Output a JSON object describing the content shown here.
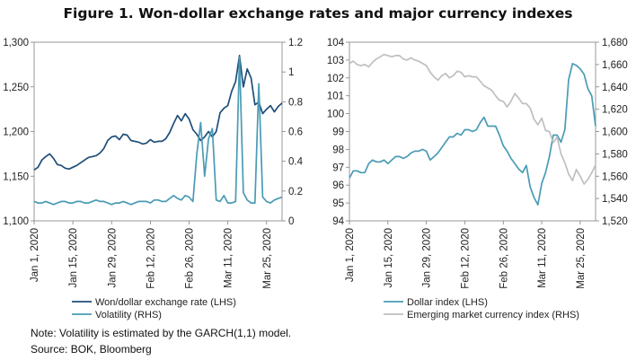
{
  "title": "Figure 1. Won-dollar exchange rates and major currency indexes",
  "note": "Note: Volatility is estimated by the GARCH(1,1) model.",
  "source": "Source: BOK, Bloomberg",
  "colors": {
    "dark_blue": "#1f4e79",
    "teal": "#4a9bb5",
    "light_gray": "#bfbfbf",
    "axis": "#808080"
  },
  "chart_data": [
    {
      "type": "line",
      "x": [
        "Jan 1, 2020",
        "Jan 2",
        "Jan 3",
        "Jan 6",
        "Jan 7",
        "Jan 8",
        "Jan 9",
        "Jan 10",
        "Jan 13",
        "Jan 14",
        "Jan 15",
        "Jan 16",
        "Jan 17",
        "Jan 20",
        "Jan 21",
        "Jan 22",
        "Jan 23",
        "Jan 24",
        "Jan 27",
        "Jan 28",
        "Jan 29",
        "Jan 30",
        "Jan 31",
        "Feb 3",
        "Feb 4",
        "Feb 5",
        "Feb 6",
        "Feb 7",
        "Feb 10",
        "Feb 11",
        "Feb 12",
        "Feb 13",
        "Feb 14",
        "Feb 17",
        "Feb 18",
        "Feb 19",
        "Feb 20",
        "Feb 21",
        "Feb 24",
        "Feb 25",
        "Feb 26",
        "Feb 27",
        "Feb 28",
        "Mar 2",
        "Mar 3",
        "Mar 4",
        "Mar 5",
        "Mar 6",
        "Mar 9",
        "Mar 10",
        "Mar 11",
        "Mar 12",
        "Mar 13",
        "Mar 16",
        "Mar 17",
        "Mar 18",
        "Mar 19",
        "Mar 20",
        "Mar 23",
        "Mar 24",
        "Mar 25",
        "Mar 26",
        "Mar 27",
        "Mar 30",
        "Mar 31"
      ],
      "x_tick_labels": [
        "Jan 1, 2020",
        "Jan 15, 2020",
        "Jan 29, 2020",
        "Feb 12, 2020",
        "Feb 26, 2020",
        "Mar 11, 2020",
        "Mar 25, 2020"
      ],
      "x_tick_indices": [
        0,
        10,
        20,
        30,
        40,
        50,
        60
      ],
      "y_left": {
        "ylim": [
          1100,
          1300
        ],
        "ticks": [
          "1,100",
          "1,150",
          "1,200",
          "1,250",
          "1,300"
        ]
      },
      "y_right": {
        "ylim": [
          0,
          1.2
        ],
        "ticks": [
          "0",
          "0.2",
          "0.4",
          "0.6",
          "0.8",
          "1",
          "1.2"
        ]
      },
      "legend_position": "bottom-left",
      "series": [
        {
          "name": "Won/dollar exchange rate (LHS)",
          "axis": "left",
          "color": "#1f4e79",
          "values": [
            1157,
            1160,
            1168,
            1172,
            1175,
            1170,
            1163,
            1162,
            1159,
            1158,
            1160,
            1162,
            1165,
            1168,
            1171,
            1172,
            1173,
            1176,
            1181,
            1190,
            1194,
            1195,
            1191,
            1197,
            1196,
            1190,
            1189,
            1188,
            1186,
            1187,
            1191,
            1188,
            1189,
            1189,
            1192,
            1199,
            1209,
            1218,
            1212,
            1220,
            1214,
            1202,
            1197,
            1190,
            1194,
            1200,
            1194,
            1200,
            1221,
            1226,
            1229,
            1245,
            1256,
            1285,
            1250,
            1270,
            1260,
            1230,
            1233,
            1220,
            1225,
            1229,
            1222,
            1228,
            1232
          ]
        },
        {
          "name": "Volatility (RHS)",
          "axis": "right",
          "color": "#4a9bb5",
          "values": [
            0.13,
            0.12,
            0.12,
            0.13,
            0.12,
            0.11,
            0.12,
            0.13,
            0.13,
            0.12,
            0.12,
            0.13,
            0.13,
            0.12,
            0.12,
            0.13,
            0.14,
            0.13,
            0.13,
            0.12,
            0.11,
            0.12,
            0.12,
            0.13,
            0.12,
            0.11,
            0.12,
            0.13,
            0.13,
            0.13,
            0.12,
            0.14,
            0.14,
            0.13,
            0.13,
            0.15,
            0.17,
            0.15,
            0.14,
            0.17,
            0.16,
            0.13,
            0.45,
            0.66,
            0.3,
            0.55,
            0.62,
            0.14,
            0.13,
            0.17,
            0.12,
            0.12,
            0.13,
            1.1,
            0.19,
            0.14,
            0.12,
            0.12,
            0.92,
            0.16,
            0.13,
            0.12,
            0.14,
            0.15,
            0.16
          ]
        }
      ]
    },
    {
      "type": "line",
      "x": [
        "Jan 1, 2020",
        "Jan 2",
        "Jan 3",
        "Jan 6",
        "Jan 7",
        "Jan 8",
        "Jan 9",
        "Jan 10",
        "Jan 13",
        "Jan 14",
        "Jan 15",
        "Jan 16",
        "Jan 17",
        "Jan 20",
        "Jan 21",
        "Jan 22",
        "Jan 23",
        "Jan 24",
        "Jan 27",
        "Jan 28",
        "Jan 29",
        "Jan 30",
        "Jan 31",
        "Feb 3",
        "Feb 4",
        "Feb 5",
        "Feb 6",
        "Feb 7",
        "Feb 10",
        "Feb 11",
        "Feb 12",
        "Feb 13",
        "Feb 14",
        "Feb 17",
        "Feb 18",
        "Feb 19",
        "Feb 20",
        "Feb 21",
        "Feb 24",
        "Feb 25",
        "Feb 26",
        "Feb 27",
        "Feb 28",
        "Mar 2",
        "Mar 3",
        "Mar 4",
        "Mar 5",
        "Mar 6",
        "Mar 9",
        "Mar 10",
        "Mar 11",
        "Mar 12",
        "Mar 13",
        "Mar 16",
        "Mar 17",
        "Mar 18",
        "Mar 19",
        "Mar 20",
        "Mar 23",
        "Mar 24",
        "Mar 25",
        "Mar 26",
        "Mar 27",
        "Mar 30",
        "Mar 31"
      ],
      "x_tick_labels": [
        "Jan 1, 2020",
        "Jan 15, 2020",
        "Jan 29, 2020",
        "Feb 12, 2020",
        "Feb 26, 2020",
        "Mar 11, 2020",
        "Mar 25, 2020"
      ],
      "x_tick_indices": [
        0,
        10,
        20,
        30,
        40,
        50,
        60
      ],
      "y_left": {
        "ylim": [
          94,
          104
        ],
        "ticks": [
          "94",
          "95",
          "96",
          "97",
          "98",
          "99",
          "100",
          "101",
          "102",
          "103",
          "104"
        ]
      },
      "y_right": {
        "ylim": [
          1520,
          1680
        ],
        "ticks": [
          "1,520",
          "1,540",
          "1,560",
          "1,580",
          "1,600",
          "1,620",
          "1,640",
          "1,660",
          "1,680"
        ]
      },
      "legend_position": "bottom-left",
      "series": [
        {
          "name": "Dollar index (LHS)",
          "axis": "left",
          "color": "#4a9bb5",
          "values": [
            96.4,
            96.8,
            96.8,
            96.7,
            96.7,
            97.2,
            97.4,
            97.3,
            97.3,
            97.4,
            97.2,
            97.4,
            97.6,
            97.6,
            97.5,
            97.6,
            97.8,
            97.9,
            97.9,
            98.0,
            97.9,
            97.4,
            97.6,
            97.8,
            98.1,
            98.4,
            98.7,
            98.7,
            98.9,
            98.8,
            99.1,
            99.1,
            99.0,
            99.1,
            99.5,
            99.8,
            99.3,
            99.3,
            99.3,
            98.8,
            98.2,
            97.9,
            97.5,
            97.2,
            96.9,
            96.7,
            97.1,
            95.9,
            95.3,
            94.9,
            96.1,
            96.7,
            97.6,
            98.8,
            98.8,
            98.4,
            99.1,
            101.9,
            102.8,
            102.7,
            102.5,
            102.2,
            101.4,
            101.0,
            99.3
          ]
        },
        {
          "name": "Emerging market currency index (RHS)",
          "axis": "right",
          "color": "#bfbfbf",
          "values": [
            1661,
            1663,
            1660,
            1659,
            1660,
            1658,
            1662,
            1665,
            1667,
            1669,
            1668,
            1667,
            1668,
            1668,
            1665,
            1664,
            1666,
            1664,
            1663,
            1661,
            1659,
            1653,
            1649,
            1646,
            1650,
            1652,
            1648,
            1650,
            1654,
            1653,
            1649,
            1650,
            1649,
            1649,
            1645,
            1641,
            1639,
            1637,
            1632,
            1628,
            1627,
            1622,
            1627,
            1634,
            1630,
            1625,
            1625,
            1621,
            1611,
            1606,
            1612,
            1601,
            1600,
            1590,
            1595,
            1580,
            1572,
            1562,
            1556,
            1566,
            1560,
            1553,
            1557,
            1563,
            1570
          ]
        }
      ]
    }
  ]
}
